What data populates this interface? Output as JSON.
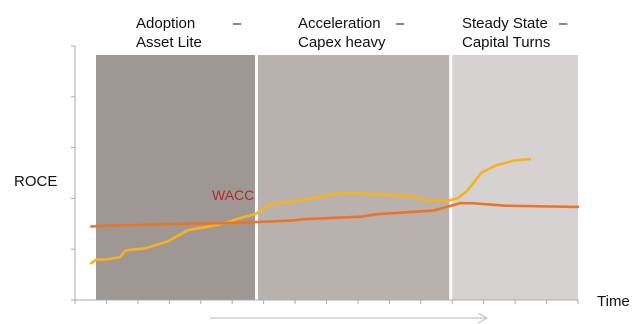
{
  "chart_data": {
    "type": "line",
    "xlabel": "Time",
    "ylabel": "ROCE",
    "phases": [
      {
        "line1": "Adoption",
        "line2": "Asset Lite",
        "x_start": 0.0,
        "x_end": 3.33,
        "color": "#9e9793"
      },
      {
        "line1": "Acceleration",
        "line2": "Capex heavy",
        "x_start": 3.33,
        "x_end": 7.36,
        "color": "#b8b1ae"
      },
      {
        "line1": "Steady State",
        "line2": "Capital Turns",
        "x_start": 7.36,
        "x_end": 10.0,
        "color": "#d6d2d1"
      }
    ],
    "xlim": [
      0,
      10
    ],
    "ylim": [
      0,
      10
    ],
    "series": [
      {
        "name": "",
        "color": "#f7b21e",
        "points": [
          [
            -0.1,
            1.5
          ],
          [
            0.0,
            1.65
          ],
          [
            0.2,
            1.65
          ],
          [
            0.5,
            1.75
          ],
          [
            0.6,
            2.0
          ],
          [
            0.7,
            2.05
          ],
          [
            1.0,
            2.1
          ],
          [
            1.5,
            2.4
          ],
          [
            1.9,
            2.85
          ],
          [
            2.2,
            2.95
          ],
          [
            2.6,
            3.1
          ],
          [
            3.0,
            3.35
          ],
          [
            3.3,
            3.5
          ],
          [
            3.6,
            3.9
          ],
          [
            4.0,
            4.0
          ],
          [
            4.5,
            4.15
          ],
          [
            5.0,
            4.35
          ],
          [
            5.5,
            4.35
          ],
          [
            6.0,
            4.3
          ],
          [
            6.5,
            4.25
          ],
          [
            6.9,
            4.05
          ],
          [
            7.3,
            4.05
          ],
          [
            7.5,
            4.15
          ],
          [
            7.7,
            4.45
          ],
          [
            8.0,
            5.2
          ],
          [
            8.3,
            5.5
          ],
          [
            8.7,
            5.7
          ],
          [
            9.0,
            5.75
          ]
        ]
      },
      {
        "name": "WACC",
        "color": "#ec7428",
        "points": [
          [
            -0.1,
            3.0
          ],
          [
            0.5,
            3.05
          ],
          [
            1.5,
            3.1
          ],
          [
            3.0,
            3.15
          ],
          [
            4.1,
            3.25
          ],
          [
            4.3,
            3.3
          ],
          [
            5.5,
            3.4
          ],
          [
            5.8,
            3.5
          ],
          [
            7.0,
            3.65
          ],
          [
            7.55,
            3.95
          ],
          [
            7.8,
            3.95
          ],
          [
            8.5,
            3.85
          ],
          [
            10.0,
            3.8
          ]
        ]
      }
    ],
    "label_color": "#b02a2a",
    "divider_color": "#ffffff",
    "axis_color": "#aaaaaa",
    "arrow_color": "#c8c8c8"
  }
}
